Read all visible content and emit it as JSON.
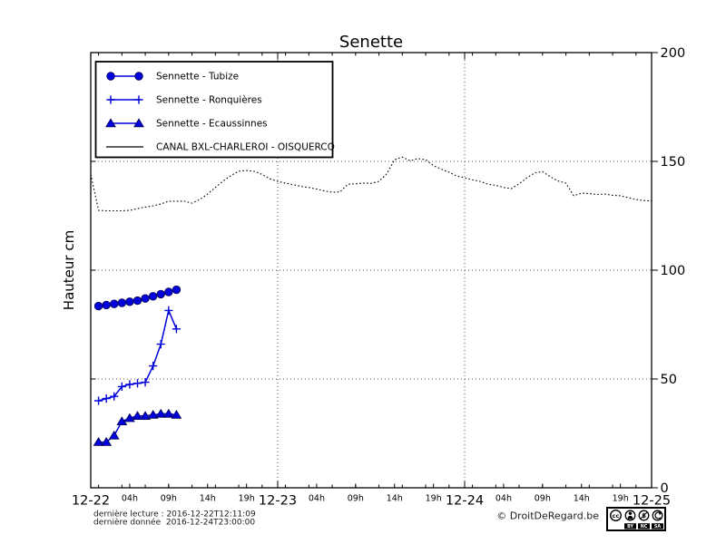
{
  "page": {
    "background": "#ffffff"
  },
  "colors": {
    "series_blue": "#0000dd",
    "series_blue_dark": "#000050",
    "canal_black": "#000000"
  },
  "chart_data": {
    "type": "line",
    "title": "Senette",
    "ylabel": "Hauteur cm",
    "ylim": [
      0,
      200
    ],
    "yticks": [
      0,
      50,
      100,
      150,
      200
    ],
    "x_day_labels": [
      "12-22",
      "12-23",
      "12-24",
      "12-25"
    ],
    "hour_tick_labels": [
      "04h",
      "09h",
      "14h",
      "19h"
    ],
    "hour_tick_positions": [
      5,
      10,
      15,
      20
    ],
    "minor_tick_every_hours": 3,
    "grid_horizontal_values": [
      50,
      100,
      150
    ],
    "grid_vertical_day_indexes": [
      1,
      2
    ],
    "legend_position": "upper left",
    "series": [
      {
        "name": "Sennette - Tubize",
        "marker": "circle",
        "linestyle": "solid",
        "color": "#0000dd",
        "x_hours": [
          1,
          2,
          3,
          4,
          5,
          6,
          7,
          8,
          9,
          10,
          11
        ],
        "values": [
          83.5,
          84,
          84.5,
          85,
          85.5,
          86,
          87,
          88,
          89,
          90,
          91
        ]
      },
      {
        "name": "Sennette - Ronquières",
        "marker": "plus",
        "linestyle": "solid",
        "color": "#0000dd",
        "x_hours": [
          1,
          2,
          3,
          4,
          5,
          6,
          7,
          8,
          9,
          10,
          11
        ],
        "values": [
          40,
          41,
          42,
          46.5,
          47.5,
          48,
          48.5,
          56,
          66,
          81.5,
          73
        ]
      },
      {
        "name": "Sennette - Ecaussinnes",
        "marker": "triangle",
        "linestyle": "solid",
        "color": "#0000dd",
        "x_hours": [
          1,
          2,
          3,
          4,
          5,
          6,
          7,
          8,
          9,
          10,
          11
        ],
        "values": [
          21,
          21,
          24,
          30.5,
          32,
          33,
          33,
          33.5,
          34,
          34,
          33.5
        ]
      },
      {
        "name": "CANAL BXL-CHARLEROI - OISQUERCQ",
        "marker": "none",
        "linestyle": "dotted",
        "color": "#000000",
        "x_start_hour": 0,
        "x_step": 1,
        "values": [
          144,
          127.5,
          127.3,
          127.3,
          127.3,
          127.5,
          128.3,
          129,
          129.6,
          130.4,
          131.7,
          131.7,
          131.7,
          130.8,
          132.5,
          135,
          138,
          141,
          143.5,
          145.5,
          145.8,
          145.4,
          144,
          142,
          140.8,
          140,
          139.3,
          138.5,
          138,
          137.3,
          136.4,
          135.8,
          136,
          139.5,
          139.7,
          140,
          139.9,
          140.8,
          144.3,
          150.8,
          152,
          150.3,
          151.3,
          150.8,
          148,
          146.4,
          145,
          143.3,
          142.5,
          141.5,
          140.8,
          139.5,
          139,
          138,
          137.5,
          139.7,
          142.5,
          144.7,
          145.3,
          142.9,
          141,
          140,
          134.2,
          135.4,
          135.2,
          134.8,
          135,
          134.4,
          134.2,
          133.3,
          132.5,
          132,
          131.8
        ]
      }
    ]
  },
  "footer": {
    "last_read": "dernière lecture : 2016-12-22T12:11:09",
    "last_data": "dernière donnée  2016-12-24T23:00:00",
    "copyright": "© DroitDeRegard.be",
    "license_cc": "cc",
    "license_labels": [
      "BY",
      "NC",
      "SA"
    ]
  }
}
